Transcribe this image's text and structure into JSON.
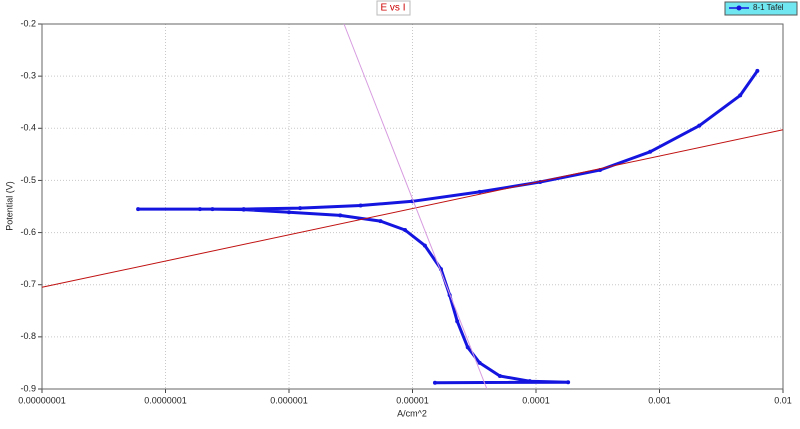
{
  "chart_data": {
    "type": "line",
    "title": "E vs I",
    "x_label": "A/cm^2",
    "y_label": "Potential (V)",
    "xscale": "log",
    "grid": true,
    "legend": "upper right",
    "xlim": [
      1e-08,
      0.01
    ],
    "xticks": [
      {
        "value": 1e-08,
        "label": "0.00000001"
      },
      {
        "value": 1e-07,
        "label": "0.0000001"
      },
      1e-06,
      1e-05,
      0.0001,
      0.001,
      0.01
    ],
    "ylim": [
      -0.9,
      -0.2
    ],
    "yticks": [
      -0.9,
      -0.8,
      -0.7,
      -0.6,
      -0.5,
      -0.4,
      -0.3,
      -0.2
    ],
    "series": [
      {
        "name": "8-1 Tafel",
        "color": "#1515e0",
        "markers": true,
        "x": [
          1.52e-05,
          0.000182,
          8.9e-05,
          5.1e-05,
          3.5e-05,
          2.8e-05,
          2.3e-05,
          2e-05,
          1.7e-05,
          1.26e-05,
          8.7e-06,
          5.5e-06,
          2.6e-06,
          1e-06,
          4.3e-07,
          2.4e-07,
          1.9e-07,
          6e-08,
          4.3e-07,
          1.23e-06,
          3.8e-06,
          1e-05,
          3.5e-05,
          0.000108,
          0.00033,
          0.00084,
          0.0021,
          0.0045,
          0.0062
        ],
        "values": [
          -0.888,
          -0.887,
          -0.885,
          -0.875,
          -0.85,
          -0.82,
          -0.77,
          -0.72,
          -0.67,
          -0.625,
          -0.595,
          -0.578,
          -0.567,
          -0.561,
          -0.556,
          -0.555,
          -0.555,
          -0.555,
          -0.555,
          -0.553,
          -0.548,
          -0.54,
          -0.522,
          -0.503,
          -0.48,
          -0.445,
          -0.395,
          -0.337,
          -0.29
        ]
      },
      {
        "color": "#c01010",
        "markers": false,
        "x": [
          1e-08,
          0.01
        ],
        "values": [
          -0.705,
          -0.403
        ]
      },
      {
        "color": "#d79be0",
        "markers": false,
        "x": [
          2.79e-06,
          4e-05
        ],
        "values": [
          -0.2,
          -0.9
        ]
      }
    ]
  }
}
